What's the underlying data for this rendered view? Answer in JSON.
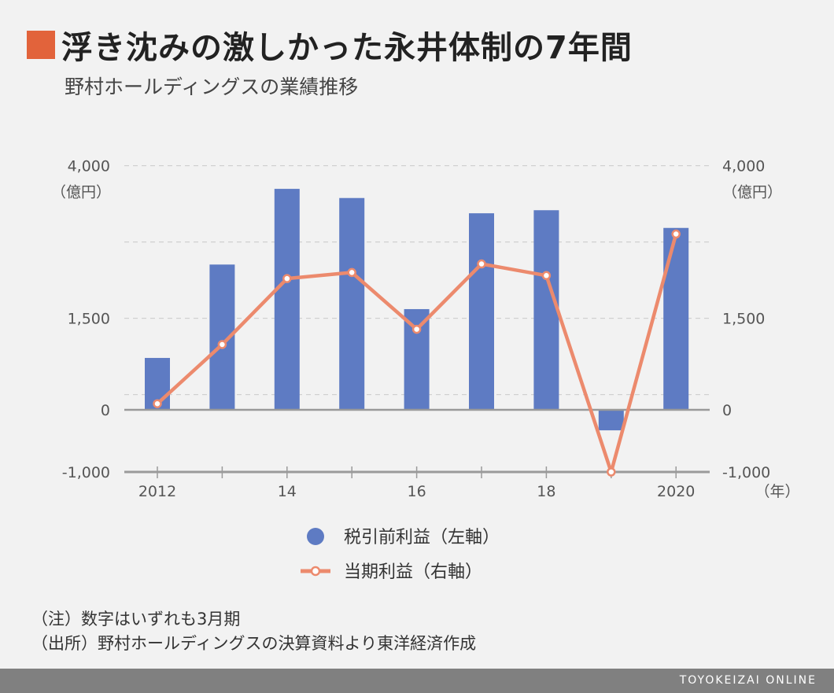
{
  "header": {
    "title": "浮き沈みの激しかった永井体制の7年間",
    "subtitle": "野村ホールディングスの業績推移",
    "accent_color": "#e2633b"
  },
  "chart_data": {
    "type": "bar+line",
    "x": [
      2012,
      2013,
      2014,
      2015,
      2016,
      2017,
      2018,
      2019,
      2020
    ],
    "x_tick_labels": [
      "2012",
      "",
      "14",
      "",
      "16",
      "",
      "18",
      "",
      "2020"
    ],
    "x_unit": "（年）",
    "series": [
      {
        "name": "税引前利益（左軸）",
        "type": "bar",
        "axis": "left",
        "color": "#5e7bc3",
        "values": [
          850,
          2380,
          3620,
          3470,
          1650,
          3220,
          3270,
          -330,
          2980
        ]
      },
      {
        "name": "当期利益（右軸）",
        "type": "line",
        "axis": "right",
        "color": "#ec8a6d",
        "values": [
          100,
          1070,
          2150,
          2250,
          1320,
          2390,
          2200,
          -1000,
          2880
        ]
      }
    ],
    "left_axis": {
      "ticks": [
        "4,000",
        "1,500",
        "0",
        "-1,000"
      ],
      "tick_values": [
        4000,
        1500,
        0,
        -1000
      ],
      "unit": "（億円）",
      "ylim": [
        -1000,
        4000
      ]
    },
    "right_axis": {
      "ticks": [
        "4,000",
        "1,500",
        "0",
        "-1,000"
      ],
      "tick_values": [
        4000,
        1500,
        0,
        -1000
      ],
      "unit": "（億円）",
      "ylim": [
        -1000,
        4000
      ]
    },
    "grid": true,
    "legend_position": "bottom"
  },
  "notes": [
    "（注）数字はいずれも3月期",
    "（出所）野村ホールディングスの決算資料より東洋経済作成"
  ],
  "footer": {
    "brand": "TOYOKEIZAI ONLINE"
  }
}
